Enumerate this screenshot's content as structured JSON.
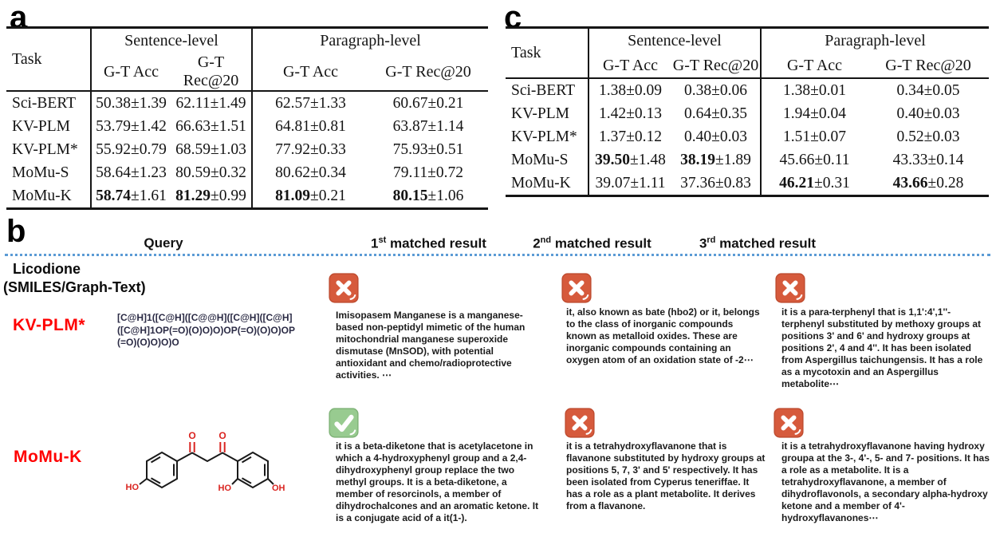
{
  "panels": {
    "a": "a",
    "b": "b",
    "c": "c"
  },
  "table_a": {
    "task_header": "Task",
    "group_headers": [
      "Sentence-level",
      "Paragraph-level"
    ],
    "subheaders": [
      "G-T Acc",
      "G-T Rec@20",
      "G-T Acc",
      "G-T Rec@20"
    ],
    "rows": [
      {
        "task": "Sci-BERT",
        "task_bold": false,
        "cells": [
          {
            "v": "50.38",
            "e": "±1.39",
            "bold": false
          },
          {
            "v": "62.11",
            "e": "±1.49",
            "bold": false
          },
          {
            "v": "62.57",
            "e": "±1.33",
            "bold": false
          },
          {
            "v": "60.67",
            "e": "±0.21",
            "bold": false
          }
        ]
      },
      {
        "task": "KV-PLM",
        "task_bold": false,
        "cells": [
          {
            "v": "53.79",
            "e": "±1.42",
            "bold": false
          },
          {
            "v": "66.63",
            "e": "±1.51",
            "bold": false
          },
          {
            "v": "64.81",
            "e": "±0.81",
            "bold": false
          },
          {
            "v": "63.87",
            "e": "±1.14",
            "bold": false
          }
        ]
      },
      {
        "task": "KV-PLM*",
        "task_bold": false,
        "cells": [
          {
            "v": "55.92",
            "e": "±0.79",
            "bold": false
          },
          {
            "v": "68.59",
            "e": "±1.03",
            "bold": false
          },
          {
            "v": "77.92",
            "e": "±0.33",
            "bold": false
          },
          {
            "v": "75.93",
            "e": "±0.51",
            "bold": false
          }
        ]
      },
      {
        "task": "MoMu-S",
        "task_bold": true,
        "cells": [
          {
            "v": "58.64",
            "e": "±1.23",
            "bold": false
          },
          {
            "v": "80.59",
            "e": "±0.32",
            "bold": false
          },
          {
            "v": "80.62",
            "e": "±0.34",
            "bold": false
          },
          {
            "v": "79.11",
            "e": "±0.72",
            "bold": false
          }
        ]
      },
      {
        "task": "MoMu-K",
        "task_bold": true,
        "cells": [
          {
            "v": "58.74",
            "e": "±1.61",
            "bold": true
          },
          {
            "v": "81.29",
            "e": "±0.99",
            "bold": true
          },
          {
            "v": "81.09",
            "e": "±0.21",
            "bold": true
          },
          {
            "v": "80.15",
            "e": "±1.06",
            "bold": true
          }
        ]
      }
    ]
  },
  "table_c": {
    "task_header": "Task",
    "group_headers": [
      "Sentence-level",
      "Paragraph-level"
    ],
    "subheaders": [
      "G-T Acc",
      "G-T Rec@20",
      "G-T Acc",
      "G-T Rec@20"
    ],
    "rows": [
      {
        "task": "Sci-BERT",
        "task_bold": false,
        "cells": [
          {
            "v": "1.38",
            "e": "±0.09",
            "bold": false
          },
          {
            "v": "0.38",
            "e": "±0.06",
            "bold": false
          },
          {
            "v": "1.38",
            "e": "±0.01",
            "bold": false
          },
          {
            "v": "0.34",
            "e": "±0.05",
            "bold": false
          }
        ]
      },
      {
        "task": "KV-PLM",
        "task_bold": false,
        "cells": [
          {
            "v": "1.42",
            "e": "±0.13",
            "bold": false
          },
          {
            "v": "0.64",
            "e": "±0.35",
            "bold": false
          },
          {
            "v": "1.94",
            "e": "±0.04",
            "bold": false
          },
          {
            "v": "0.40",
            "e": "±0.03",
            "bold": false
          }
        ]
      },
      {
        "task": "KV-PLM*",
        "task_bold": false,
        "cells": [
          {
            "v": "1.37",
            "e": "±0.12",
            "bold": false
          },
          {
            "v": "0.40",
            "e": "±0.03",
            "bold": false
          },
          {
            "v": "1.51",
            "e": "±0.07",
            "bold": false
          },
          {
            "v": "0.52",
            "e": "±0.03",
            "bold": false
          }
        ]
      },
      {
        "task": "MoMu-S",
        "task_bold": true,
        "cells": [
          {
            "v": "39.50",
            "e": "±1.48",
            "bold": true
          },
          {
            "v": "38.19",
            "e": "±1.89",
            "bold": true
          },
          {
            "v": "45.66",
            "e": "±0.11",
            "bold": false
          },
          {
            "v": "43.33",
            "e": "±0.14",
            "bold": false
          }
        ]
      },
      {
        "task": "MoMu-K",
        "task_bold": true,
        "cells": [
          {
            "v": "39.07",
            "e": "±1.11",
            "bold": false
          },
          {
            "v": "37.36",
            "e": "±0.83",
            "bold": false
          },
          {
            "v": "46.21",
            "e": "±0.31",
            "bold": true
          },
          {
            "v": "43.66",
            "e": "±0.28",
            "bold": true
          }
        ]
      }
    ]
  },
  "b_section": {
    "headers": {
      "query": "Query",
      "m1": {
        "n": "1",
        "sup": "st",
        "rest": " matched result"
      },
      "m2": {
        "n": "2",
        "sup": "nd",
        "rest": " matched result"
      },
      "m3": {
        "n": "3",
        "sup": "rd",
        "rest": " matched result"
      }
    },
    "row1": {
      "query_title": "Licodione",
      "query_subtitle": "(SMILES/Graph-Text)",
      "model": "KV-PLM*",
      "smiles": "[C@H]1([C@H]([C@@H]([C@H]([C@H]([C@H]1OP(=O)(O)O)O)OP(=O)(O)O)OP(=O)(O)O)O)O",
      "results": [
        {
          "verdict": "wrong",
          "text": "Imisopasem Manganese is a manganese-based non-peptidyl mimetic of the human mitochondrial manganese superoxide dismutase (MnSOD), with potential antioxidant and chemo/radioprotective activities. ⋯"
        },
        {
          "verdict": "wrong",
          "text": "it, also known as bate (hbo2) or it, belongs to the class of inorganic compounds known as metalloid oxides. These are inorganic compounds containing an oxygen atom of an oxidation state of -2⋯"
        },
        {
          "verdict": "wrong",
          "text": "it is a para-terphenyl that is 1,1':4',1''-terphenyl substituted by methoxy groups at positions 3' and 6' and hydroxy groups at positions 2', 4 and 4''. It has been isolated from Aspergillus taichungensis. It has a role as a mycotoxin and an Aspergillus metabolite⋯"
        }
      ]
    },
    "row2": {
      "model": "MoMu-K",
      "molecule_labels": {
        "o_left": "O",
        "o_right": "O",
        "ho_left": "HO",
        "ho_right": "HO",
        "oh_right": "OH"
      },
      "results": [
        {
          "verdict": "correct",
          "text": "it is a beta-diketone that is acetylacetone in which a 4-hydroxyphenyl group and a 2,4-dihydroxyphenyl group replace the two methyl groups. It is a beta-diketone, a member of resorcinols, a member of dihydrochalcones and an aromatic ketone. It is a conjugate acid of a it(1-)."
        },
        {
          "verdict": "wrong",
          "text": "it is a tetrahydroxyflavanone that is flavanone substituted by hydroxy groups at positions 5, 7, 3' and 5' respectively. It has been isolated from Cyperus teneriffae. It has a role as a plant metabolite. It derives from a flavanone."
        },
        {
          "verdict": "wrong",
          "text": "it is a tetrahydroxyflavanone having hydroxy groupa at the 3-, 4'-, 5- and 7- positions. It has a role as a metabolite. It is a tetrahydroxyflavanone, a member of dihydroflavonols, a secondary alpha-hydroxy ketone and a member of 4'-hydroxyflavanones⋯"
        }
      ]
    },
    "colors": {
      "model_label": "#ff0000",
      "cross_icon": "#d65a3c",
      "check_icon": "#98cb90",
      "dotted_line": "#5b9bd5",
      "smiles_text": "#2b2b45"
    }
  }
}
